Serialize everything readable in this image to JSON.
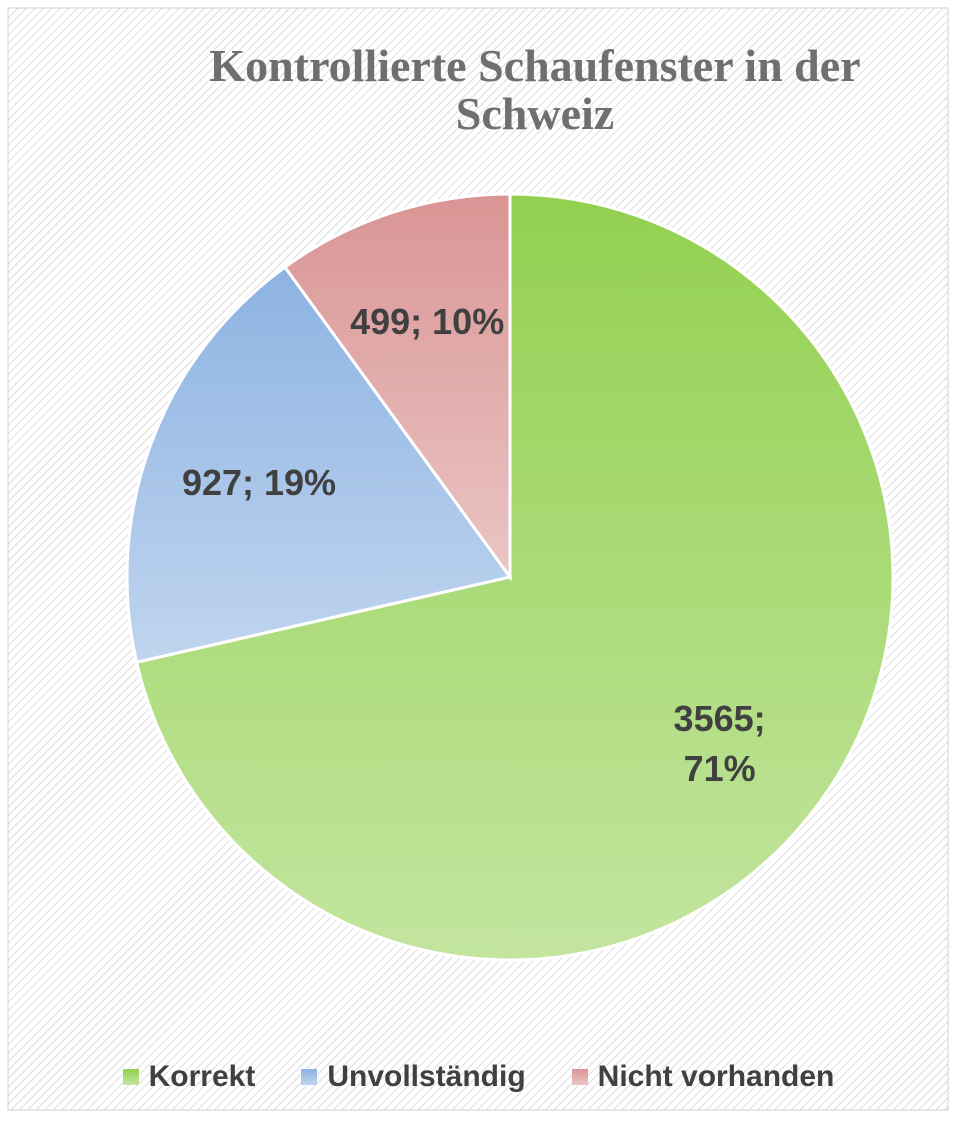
{
  "chart_data": {
    "type": "pie",
    "title": "Kontrollierte Schaufenster in der Schweiz",
    "categories": [
      "Korrekt",
      "Unvollständig",
      "Nicht vorhanden"
    ],
    "values": [
      3565,
      927,
      499
    ],
    "value_labels": [
      "3565; 71%",
      "927; 19%",
      "499; 10%"
    ],
    "colors": [
      "#92d050",
      "#8db3e2",
      "#d99594"
    ],
    "legend": "bottom"
  }
}
